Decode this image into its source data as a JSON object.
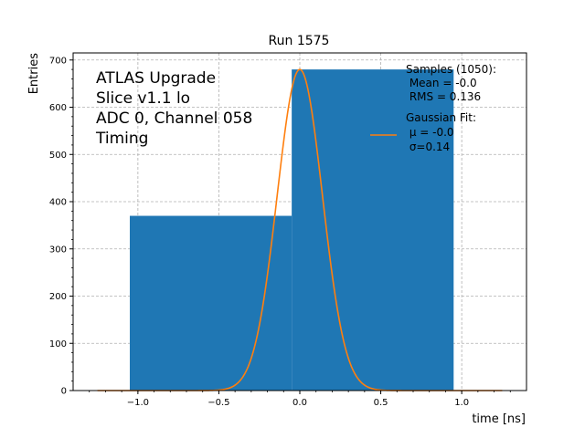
{
  "chart_data": {
    "type": "bar",
    "title": "Run 1575",
    "xlabel": "time [ns]",
    "ylabel": "Entries",
    "xlim": [
      -1.4,
      1.4
    ],
    "ylim": [
      0,
      715
    ],
    "xticks": [
      -1.0,
      -0.5,
      0.0,
      0.5,
      1.0
    ],
    "xtick_labels": [
      "−1.0",
      "−0.5",
      "0.0",
      "0.5",
      "1.0"
    ],
    "yticks": [
      0,
      100,
      200,
      300,
      400,
      500,
      600,
      700
    ],
    "ytick_labels": [
      "0",
      "100",
      "200",
      "300",
      "400",
      "500",
      "600",
      "700"
    ],
    "grid": true,
    "histogram": {
      "bins": [
        {
          "x0": -1.05,
          "x1": -0.05,
          "value": 370
        },
        {
          "x0": -0.05,
          "x1": 0.95,
          "value": 680
        }
      ],
      "color": "#1f77b4"
    },
    "gaussian_fit": {
      "mu": 0.0,
      "sigma": 0.14,
      "amplitude": 680,
      "x_range": [
        -1.25,
        1.25
      ],
      "color": "#ff7f0e"
    },
    "annotation_lines": [
      "ATLAS Upgrade",
      "Slice v1.1 lo",
      "ADC 0, Channel 058",
      "Timing"
    ],
    "legend": {
      "samples_lines": [
        "Samples (1050):",
        " Mean = -0.0",
        " RMS = 0.136"
      ],
      "fit_lines": [
        "Gaussian Fit:",
        " μ = -0.0",
        " σ=0.14"
      ],
      "placement": "top-right"
    }
  }
}
